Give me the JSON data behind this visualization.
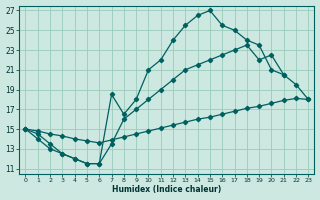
{
  "xlabel": "Humidex (Indice chaleur)",
  "bg_color": "#cce8e0",
  "grid_color": "#99ccbb",
  "line_color": "#006060",
  "xlim": [
    -0.5,
    23.5
  ],
  "ylim": [
    10.5,
    27.5
  ],
  "xticks": [
    0,
    1,
    2,
    3,
    4,
    5,
    6,
    7,
    8,
    9,
    10,
    11,
    12,
    13,
    14,
    15,
    16,
    17,
    18,
    19,
    20,
    21,
    22,
    23
  ],
  "yticks": [
    11,
    13,
    15,
    17,
    19,
    21,
    23,
    25,
    27
  ],
  "line1_x": [
    0,
    1,
    2,
    3,
    4,
    5,
    6,
    7,
    8,
    9,
    10,
    11,
    12,
    13,
    14,
    15,
    16,
    17,
    18,
    19,
    20,
    21
  ],
  "line1_y": [
    15,
    14,
    13,
    12.5,
    12,
    11.5,
    11.5,
    18.5,
    16.5,
    18,
    21,
    22,
    24,
    25.5,
    26.5,
    27,
    25.5,
    25,
    24,
    23.5,
    21,
    20.5
  ],
  "line2_x": [
    0,
    1,
    2,
    3,
    4,
    5,
    6,
    7,
    8,
    9,
    10,
    11,
    12,
    13,
    14,
    15,
    16,
    17,
    18,
    19,
    20,
    21,
    22,
    23
  ],
  "line2_y": [
    15,
    14.8,
    14.5,
    14.3,
    14,
    13.8,
    13.6,
    13.9,
    14.2,
    14.5,
    14.8,
    15.1,
    15.4,
    15.7,
    16.0,
    16.2,
    16.5,
    16.8,
    17.1,
    17.3,
    17.6,
    17.9,
    18.1,
    18.0
  ],
  "line3_x": [
    0,
    1,
    2,
    3,
    4,
    5,
    6,
    7,
    8,
    9,
    10,
    11,
    12,
    13,
    14,
    15,
    16,
    17,
    18,
    19,
    20,
    21,
    22,
    23
  ],
  "line3_y": [
    15,
    14.5,
    13.5,
    12.5,
    12,
    11.5,
    11.5,
    13.5,
    16,
    17,
    18,
    19,
    20,
    21,
    21.5,
    22,
    22.5,
    23,
    23.5,
    22,
    22.5,
    20.5,
    19.5,
    18.0
  ]
}
